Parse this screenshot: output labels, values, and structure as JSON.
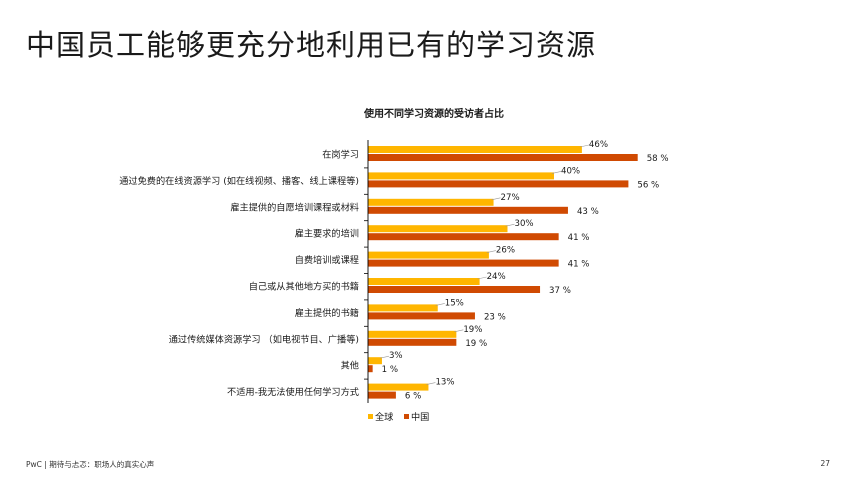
{
  "slide": {
    "title": "中国员工能够更充分地利用已有的学习资源",
    "footer": "PwC | 期待与忐忑：职场人的真实心声",
    "page_number": "27"
  },
  "colors": {
    "global": "#FFB600",
    "china": "#D04A02",
    "leader": "#999999",
    "axis": "#000000"
  },
  "chart_data": {
    "type": "bar",
    "orientation": "horizontal",
    "title": "使用不同学习资源的受访者占比",
    "categories": [
      "在岗学习",
      "通过免费的在线资源学习 (如在线视频、播客、线上课程等)",
      "雇主提供的自愿培训课程或材料",
      "雇主要求的培训",
      "自费培训或课程",
      "自己或从其他地方买的书籍",
      "雇主提供的书籍",
      "通过传统媒体资源学习 （如电视节目、广播等)",
      "其他",
      "不适用-我无法使用任何学习方式"
    ],
    "series": [
      {
        "name": "全球",
        "values": [
          46,
          40,
          27,
          30,
          26,
          24,
          15,
          19,
          3,
          13
        ],
        "labels": [
          "46%",
          "40%",
          "27%",
          "30%",
          "26%",
          "24%",
          "15%",
          "19%",
          "3%",
          "13%"
        ]
      },
      {
        "name": "中国",
        "values": [
          58,
          56,
          43,
          41,
          41,
          37,
          23,
          19,
          1,
          6
        ],
        "labels": [
          "58 %",
          "56 %",
          "43 %",
          "41 %",
          "41 %",
          "37 %",
          "23 %",
          "19 %",
          "1 %",
          "6 %"
        ]
      }
    ],
    "xlim": [
      0,
      100
    ],
    "grid": false,
    "legend": "bottom"
  }
}
